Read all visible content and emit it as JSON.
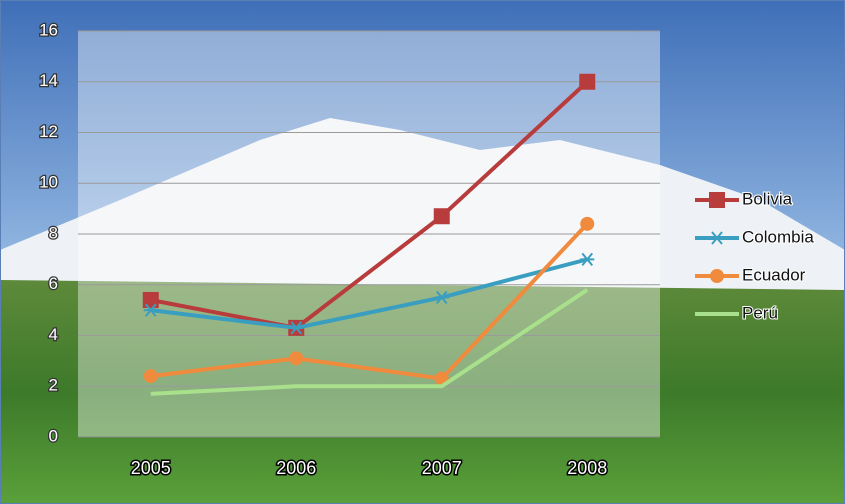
{
  "chart_data": {
    "type": "line",
    "categories": [
      "2005",
      "2006",
      "2007",
      "2008"
    ],
    "series": [
      {
        "name": "Bolivia",
        "color": "#b83c3c",
        "marker": "square",
        "values": [
          5.4,
          4.3,
          8.7,
          14.0
        ]
      },
      {
        "name": "Colombia",
        "color": "#3a9ec0",
        "marker": "star",
        "values": [
          5.0,
          4.3,
          5.5,
          7.0
        ]
      },
      {
        "name": "Ecuador",
        "color": "#f08a3c",
        "marker": "circle",
        "values": [
          2.4,
          3.1,
          2.3,
          8.4
        ]
      },
      {
        "name": "Perú",
        "color": "#a8e08c",
        "marker": "none",
        "values": [
          1.7,
          2.0,
          2.0,
          5.8
        ]
      }
    ],
    "ylim": [
      0,
      16
    ],
    "yticks": [
      0,
      2,
      4,
      6,
      8,
      10,
      12,
      14,
      16
    ],
    "grid": true,
    "legend": "right"
  }
}
